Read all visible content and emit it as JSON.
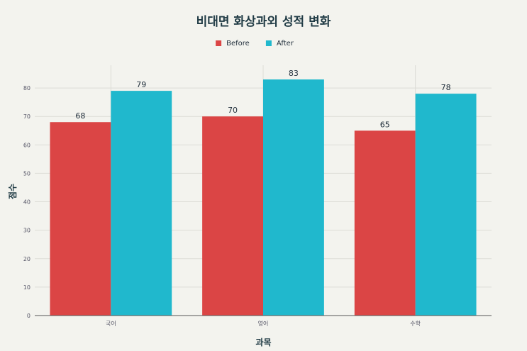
{
  "chart_data": {
    "type": "bar",
    "title": "비대면 화상과외 성적 변화",
    "xlabel": "과목",
    "ylabel": "점수",
    "categories": [
      "국어",
      "영어",
      "수학"
    ],
    "series": [
      {
        "name": "Before",
        "values": [
          68,
          70,
          65
        ],
        "color": "#db4545"
      },
      {
        "name": "After",
        "values": [
          79,
          83,
          78
        ],
        "color": "#20b8cd"
      }
    ],
    "ylim": [
      0,
      88
    ],
    "yticks": [
      0,
      10,
      20,
      30,
      40,
      50,
      60,
      70,
      80
    ],
    "grid": true,
    "legend_position": "top-center",
    "data_labels": true
  }
}
